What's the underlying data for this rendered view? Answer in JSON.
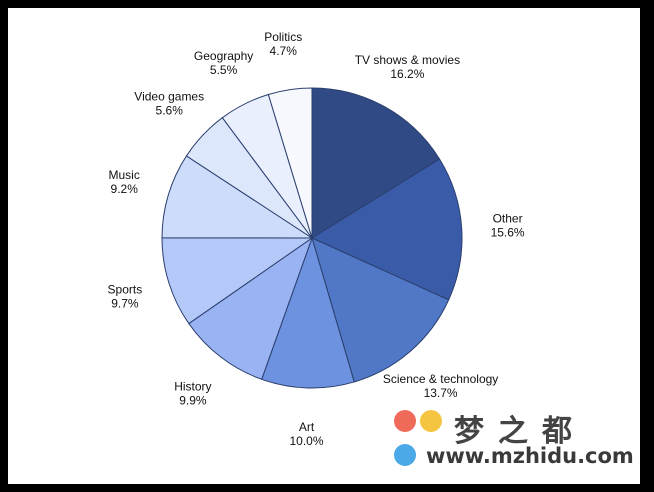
{
  "chart_data": {
    "type": "pie",
    "title": "",
    "slices": [
      {
        "label": "TV shows & movies",
        "value": 16.2,
        "value_label": "16.2%",
        "color": "#2f4a85"
      },
      {
        "label": "Other",
        "value": 15.6,
        "value_label": "15.6%",
        "color": "#3a5ca8"
      },
      {
        "label": "Science & technology",
        "value": 13.7,
        "value_label": "13.7%",
        "color": "#5078c7"
      },
      {
        "label": "Art",
        "value": 10.0,
        "value_label": "10.0%",
        "color": "#6d93e0"
      },
      {
        "label": "History",
        "value": 9.9,
        "value_label": "9.9%",
        "color": "#9ab4f3"
      },
      {
        "label": "Sports",
        "value": 9.7,
        "value_label": "9.7%",
        "color": "#b5c9f8"
      },
      {
        "label": "Music",
        "value": 9.2,
        "value_label": "9.2%",
        "color": "#cddcfb"
      },
      {
        "label": "Video games",
        "value": 5.6,
        "value_label": "5.6%",
        "color": "#dde7fc"
      },
      {
        "label": "Geography",
        "value": 5.5,
        "value_label": "5.5%",
        "color": "#e9effd"
      },
      {
        "label": "Politics",
        "value": 4.7,
        "value_label": "4.7%",
        "color": "#f6f8fe"
      }
    ],
    "start_angle": "12 o'clock",
    "direction": "clockwise",
    "legend": "none",
    "slice_border_color": "#2b3f6e"
  },
  "watermark": {
    "title": "梦之都",
    "url": "www.mzhidu.com"
  }
}
